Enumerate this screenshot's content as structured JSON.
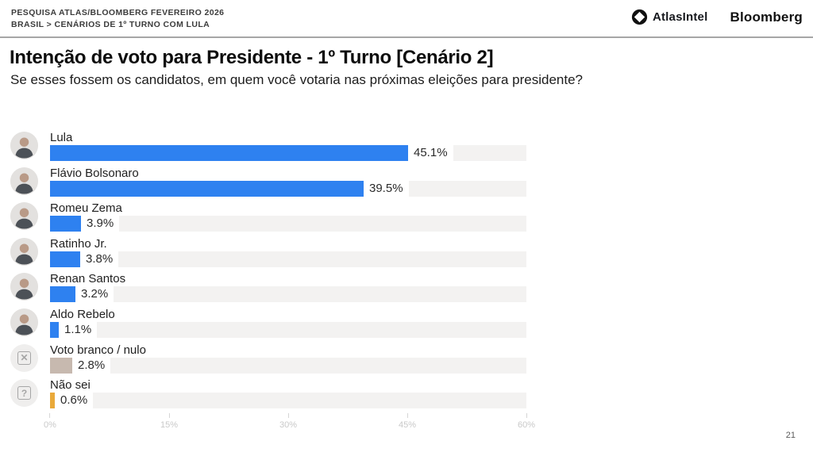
{
  "header": {
    "kicker_line1": "PESQUISA ATLAS/BLOOMBERG FEVEREIRO 2026",
    "kicker_line2": "BRASIL > CENÁRIOS DE 1º TURNO COM LULA",
    "brands": {
      "atlasintel": "AtlasIntel",
      "bloomberg": "Bloomberg"
    }
  },
  "title": "Intenção de voto para Presidente - 1º Turno [Cenário 2]",
  "subtitle": "Se esses fossem os candidatos, em quem você votaria nas próximas eleições para presidente?",
  "page_number": "21",
  "colors": {
    "bar_blue": "#2e81f0",
    "bar_tan": "#c7b9af",
    "bar_gold": "#e9a93a",
    "track_gray": "#f3f2f1",
    "axis_text": "#c9c9c9",
    "logo_black": "#111111"
  },
  "chart_data": {
    "type": "bar",
    "orientation": "horizontal",
    "title": "Intenção de voto para Presidente - 1º Turno [Cenário 2]",
    "xlabel": "",
    "ylabel": "",
    "xlim": [
      0,
      60
    ],
    "x_tick_labels": [
      "0%",
      "15%",
      "30%",
      "45%",
      "60%"
    ],
    "grid": false,
    "legend": false,
    "rows": [
      {
        "name": "Lula",
        "value": 45.1,
        "label": "45.1%",
        "color": "#2e81f0",
        "avatar": "photo"
      },
      {
        "name": "Flávio Bolsonaro",
        "value": 39.5,
        "label": "39.5%",
        "color": "#2e81f0",
        "avatar": "photo"
      },
      {
        "name": "Romeu Zema",
        "value": 3.9,
        "label": "3.9%",
        "color": "#2e81f0",
        "avatar": "photo"
      },
      {
        "name": "Ratinho Jr.",
        "value": 3.8,
        "label": "3.8%",
        "color": "#2e81f0",
        "avatar": "photo"
      },
      {
        "name": "Renan Santos",
        "value": 3.2,
        "label": "3.2%",
        "color": "#2e81f0",
        "avatar": "photo"
      },
      {
        "name": "Aldo Rebelo",
        "value": 1.1,
        "label": "1.1%",
        "color": "#2e81f0",
        "avatar": "photo"
      },
      {
        "name": "Voto branco / nulo",
        "value": 2.8,
        "label": "2.8%",
        "color": "#c7b9af",
        "avatar": "x-icon"
      },
      {
        "name": "Não sei",
        "value": 0.6,
        "label": "0.6%",
        "color": "#e9a93a",
        "avatar": "question-icon"
      }
    ],
    "icon_glyphs": {
      "x-icon": "✕",
      "question-icon": "?"
    }
  }
}
